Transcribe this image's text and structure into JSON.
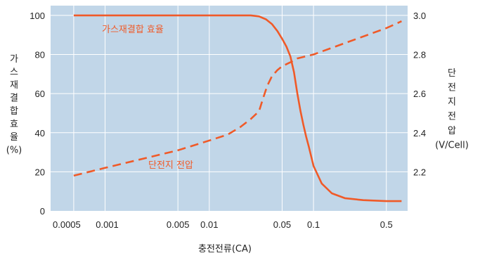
{
  "chart_data": {
    "type": "line",
    "x_scale": "log",
    "x_ticks": [
      0.0005,
      0.001,
      0.005,
      0.01,
      0.05,
      0.1,
      0.5
    ],
    "x_tick_labels": [
      "0.0005",
      "0.001",
      "0.005",
      "0.01",
      "0.05",
      "0.1",
      "0.5"
    ],
    "xlabel": "충전전류(CA)",
    "xlim": [
      0.0003,
      0.8
    ],
    "y_left": {
      "label_chars": [
        "가",
        "스",
        "재",
        "결",
        "합",
        "효",
        "율",
        "(%)"
      ],
      "lim": [
        0,
        105
      ],
      "ticks": [
        0,
        20,
        40,
        60,
        80,
        100
      ],
      "tick_labels": [
        "0",
        "20",
        "40",
        "60",
        "80",
        "100"
      ]
    },
    "y_right": {
      "label_chars": [
        "단",
        "전",
        "지",
        "전",
        "압",
        "(V/Cell)"
      ],
      "lim": [
        2.0,
        3.05
      ],
      "ticks": [
        2.2,
        2.4,
        2.6,
        2.8,
        3.0
      ],
      "tick_labels": [
        "2.2",
        "2.4",
        "2.6",
        "2.8",
        "3.0"
      ]
    },
    "grid": true,
    "background_color": "#c1d6e8",
    "grid_color": "#ffffff",
    "series": [
      {
        "name": "가스재결합 효율",
        "axis": "left",
        "style": "solid",
        "color": "#f05a28",
        "x": [
          0.0005,
          0.001,
          0.005,
          0.01,
          0.02,
          0.025,
          0.03,
          0.035,
          0.04,
          0.045,
          0.05,
          0.055,
          0.06,
          0.065,
          0.07,
          0.075,
          0.08,
          0.085,
          0.09,
          0.1,
          0.12,
          0.15,
          0.2,
          0.3,
          0.5,
          0.7
        ],
        "values": [
          100,
          100,
          100,
          100,
          100,
          100,
          99.5,
          98,
          95.5,
          92,
          88,
          84,
          79,
          71,
          60,
          51,
          44,
          38,
          33,
          23,
          14,
          9,
          6.5,
          5.5,
          5,
          5
        ]
      },
      {
        "name": "단전지 전압",
        "axis": "right",
        "style": "dashed",
        "color": "#f05a28",
        "x": [
          0.0005,
          0.001,
          0.005,
          0.01,
          0.015,
          0.02,
          0.025,
          0.03,
          0.033,
          0.036,
          0.04,
          0.045,
          0.05,
          0.06,
          0.07,
          0.1,
          0.5,
          0.7
        ],
        "values": [
          2.18,
          2.22,
          2.31,
          2.36,
          2.39,
          2.43,
          2.47,
          2.51,
          2.58,
          2.64,
          2.69,
          2.72,
          2.74,
          2.76,
          2.78,
          2.8,
          2.935,
          2.97
        ]
      }
    ],
    "series_label_colors": {
      "efficiency": "#f05a28",
      "voltage": "#f05a28"
    }
  }
}
